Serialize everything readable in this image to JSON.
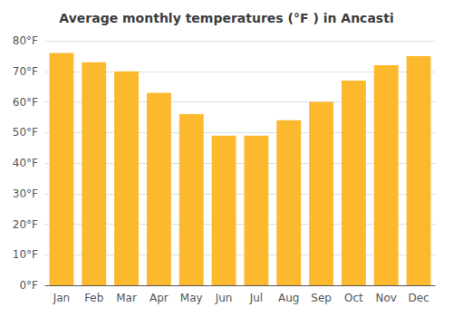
{
  "chart_data": {
    "type": "bar",
    "title": "Average monthly temperatures (°F ) in Ancasti",
    "categories": [
      "Jan",
      "Feb",
      "Mar",
      "Apr",
      "May",
      "Jun",
      "Jul",
      "Aug",
      "Sep",
      "Oct",
      "Nov",
      "Dec"
    ],
    "values": [
      76,
      73,
      70,
      63,
      56,
      49,
      49,
      54,
      60,
      67,
      72,
      75
    ],
    "color": "#FDB92E",
    "ylim": [
      0,
      80
    ],
    "yticks": [
      {
        "value": 0,
        "label": "0°F"
      },
      {
        "value": 10,
        "label": "10°F"
      },
      {
        "value": 20,
        "label": "20°F"
      },
      {
        "value": 30,
        "label": "30°F"
      },
      {
        "value": 40,
        "label": "40°F"
      },
      {
        "value": 50,
        "label": "50°F"
      },
      {
        "value": 60,
        "label": "60°F"
      },
      {
        "value": 70,
        "label": "70°F"
      },
      {
        "value": 80,
        "label": "80°F"
      }
    ],
    "grid": true
  }
}
